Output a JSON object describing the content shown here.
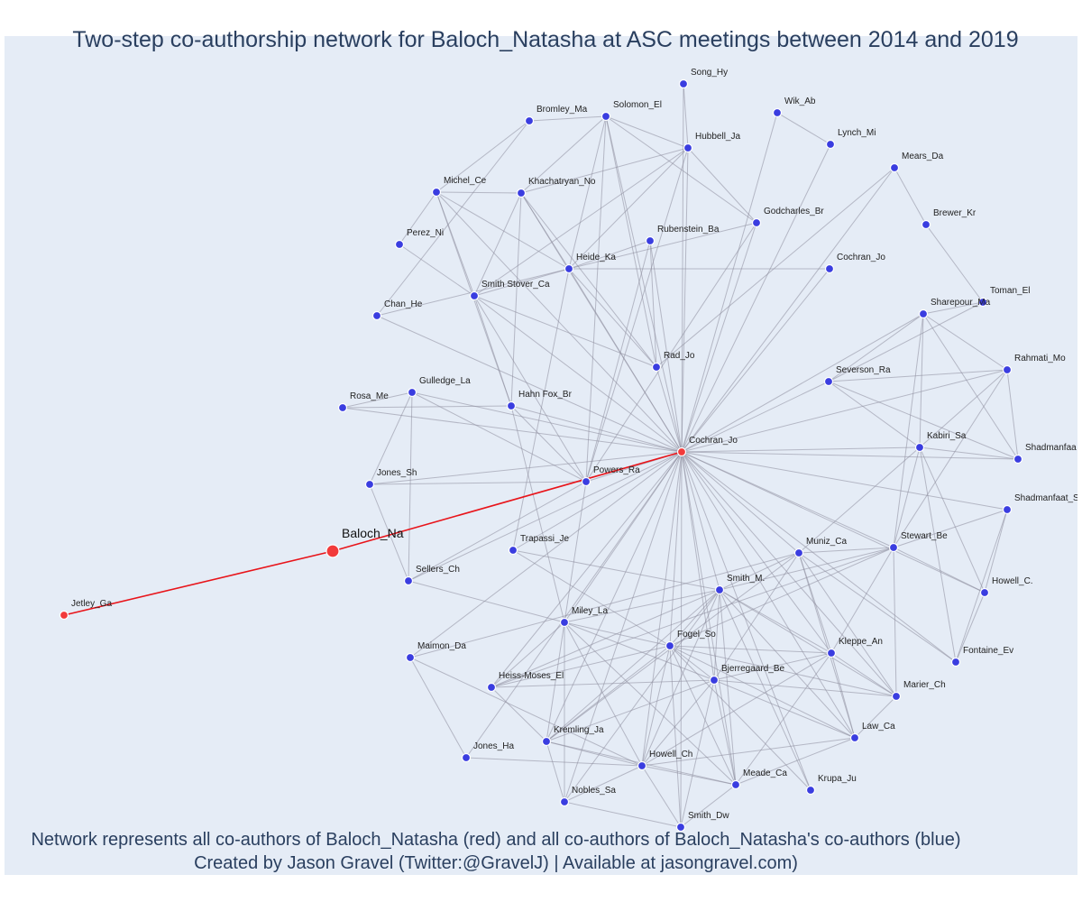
{
  "title": "Two-step co-authorship network for Baloch_Natasha at ASC meetings between 2014 and 2019",
  "footer": {
    "line1": "Network represents all co-authors of Baloch_Natasha (red) and all co-authors of Baloch_Natasha's co-authors (blue)",
    "line2": "Created by Jason Gravel (Twitter:@GravelJ) | Available at jasongravel.com)"
  },
  "colors": {
    "background": "#e5ecf6",
    "ego_and_direct_coauthors": "#f23a3a",
    "second_step_coauthors": "#3a3de0",
    "ego_edges": "#e8141a",
    "other_edges": "#8c8c9c"
  },
  "focal_node": "Baloch_Na",
  "nodes": [
    {
      "id": "Baloch_Na",
      "group": "red",
      "focal": true
    },
    {
      "id": "Jetley_Ga",
      "group": "red"
    },
    {
      "id": "Cochran_Jo",
      "group": "red"
    },
    {
      "id": "Song_Hy",
      "group": "blue"
    },
    {
      "id": "Wik_Ab",
      "group": "blue"
    },
    {
      "id": "Bromley_Ma",
      "group": "blue"
    },
    {
      "id": "Solomon_El",
      "group": "blue"
    },
    {
      "id": "Lynch_Mi",
      "group": "blue"
    },
    {
      "id": "Hubbell_Ja",
      "group": "blue"
    },
    {
      "id": "Mears_Da",
      "group": "blue"
    },
    {
      "id": "Michel_Ce",
      "group": "blue"
    },
    {
      "id": "Khachatryan_No",
      "group": "blue"
    },
    {
      "id": "Godcharles_Br",
      "group": "blue"
    },
    {
      "id": "Brewer_Kr",
      "group": "blue"
    },
    {
      "id": "Perez_Ni",
      "group": "blue"
    },
    {
      "id": "Rubenstein_Ba",
      "group": "blue"
    },
    {
      "id": "Heide_Ka",
      "group": "blue"
    },
    {
      "id": "Cochran_Jo_2",
      "label": "Cochran_Jo",
      "group": "blue"
    },
    {
      "id": "Smith Stover_Ca",
      "group": "blue"
    },
    {
      "id": "Toman_El",
      "group": "blue"
    },
    {
      "id": "Chan_He",
      "group": "blue"
    },
    {
      "id": "Sharepour_Ma",
      "group": "blue"
    },
    {
      "id": "Rad_Jo",
      "group": "blue"
    },
    {
      "id": "Rahmati_Mo",
      "group": "blue"
    },
    {
      "id": "Severson_Ra",
      "group": "blue"
    },
    {
      "id": "Gulledge_La",
      "group": "blue"
    },
    {
      "id": "Rosa_Me",
      "group": "blue"
    },
    {
      "id": "Hahn Fox_Br",
      "group": "blue"
    },
    {
      "id": "Kabiri_Sa",
      "group": "blue"
    },
    {
      "id": "Shadmanfaa",
      "group": "blue"
    },
    {
      "id": "Jones_Sh",
      "group": "blue"
    },
    {
      "id": "Powers_Ra",
      "group": "blue"
    },
    {
      "id": "Shadmanfaat_S",
      "group": "blue"
    },
    {
      "id": "Trapassi_Je",
      "group": "blue"
    },
    {
      "id": "Stewart_Be",
      "group": "blue"
    },
    {
      "id": "Muniz_Ca",
      "group": "blue"
    },
    {
      "id": "Sellers_Ch",
      "group": "blue"
    },
    {
      "id": "Smith_M.",
      "group": "blue"
    },
    {
      "id": "Howell_C.",
      "group": "blue"
    },
    {
      "id": "Miley_La",
      "group": "blue"
    },
    {
      "id": "Fogel_So",
      "group": "blue"
    },
    {
      "id": "Kleppe_An",
      "group": "blue"
    },
    {
      "id": "Maimon_Da",
      "group": "blue"
    },
    {
      "id": "Fontaine_Ev",
      "group": "blue"
    },
    {
      "id": "Bjerregaard_Be",
      "group": "blue"
    },
    {
      "id": "Heiss-Moses_El",
      "group": "blue"
    },
    {
      "id": "Marier_Ch",
      "group": "blue"
    },
    {
      "id": "Law_Ca",
      "group": "blue"
    },
    {
      "id": "Kremling_Ja",
      "group": "blue"
    },
    {
      "id": "Jones_Ha",
      "group": "blue"
    },
    {
      "id": "Howell_Ch",
      "group": "blue"
    },
    {
      "id": "Meade_Ca",
      "group": "blue"
    },
    {
      "id": "Krupa_Ju",
      "group": "blue"
    },
    {
      "id": "Nobles_Sa",
      "group": "blue"
    },
    {
      "id": "Smith_Dw",
      "group": "blue"
    }
  ],
  "edges": [
    [
      "Baloch_Na",
      "Jetley_Ga"
    ],
    [
      "Baloch_Na",
      "Cochran_Jo"
    ],
    [
      "Cochran_Jo",
      "Song_Hy"
    ],
    [
      "Cochran_Jo",
      "Wik_Ab"
    ],
    [
      "Cochran_Jo",
      "Solomon_El"
    ],
    [
      "Cochran_Jo",
      "Lynch_Mi"
    ],
    [
      "Cochran_Jo",
      "Hubbell_Ja"
    ],
    [
      "Cochran_Jo",
      "Mears_Da"
    ],
    [
      "Cochran_Jo",
      "Michel_Ce"
    ],
    [
      "Cochran_Jo",
      "Khachatryan_No"
    ],
    [
      "Cochran_Jo",
      "Godcharles_Br"
    ],
    [
      "Cochran_Jo",
      "Rubenstein_Ba"
    ],
    [
      "Cochran_Jo",
      "Heide_Ka"
    ],
    [
      "Cochran_Jo",
      "Cochran_Jo_2"
    ],
    [
      "Cochran_Jo",
      "Smith Stover_Ca"
    ],
    [
      "Cochran_Jo",
      "Chan_He"
    ],
    [
      "Cochran_Jo",
      "Sharepour_Ma"
    ],
    [
      "Cochran_Jo",
      "Rad_Jo"
    ],
    [
      "Cochran_Jo",
      "Rahmati_Mo"
    ],
    [
      "Cochran_Jo",
      "Severson_Ra"
    ],
    [
      "Cochran_Jo",
      "Gulledge_La"
    ],
    [
      "Cochran_Jo",
      "Rosa_Me"
    ],
    [
      "Cochran_Jo",
      "Hahn Fox_Br"
    ],
    [
      "Cochran_Jo",
      "Kabiri_Sa"
    ],
    [
      "Cochran_Jo",
      "Shadmanfaa"
    ],
    [
      "Cochran_Jo",
      "Jones_Sh"
    ],
    [
      "Cochran_Jo",
      "Powers_Ra"
    ],
    [
      "Cochran_Jo",
      "Shadmanfaat_S"
    ],
    [
      "Cochran_Jo",
      "Trapassi_Je"
    ],
    [
      "Cochran_Jo",
      "Stewart_Be"
    ],
    [
      "Cochran_Jo",
      "Muniz_Ca"
    ],
    [
      "Cochran_Jo",
      "Sellers_Ch"
    ],
    [
      "Cochran_Jo",
      "Smith_M."
    ],
    [
      "Cochran_Jo",
      "Howell_C."
    ],
    [
      "Cochran_Jo",
      "Miley_La"
    ],
    [
      "Cochran_Jo",
      "Fogel_So"
    ],
    [
      "Cochran_Jo",
      "Kleppe_An"
    ],
    [
      "Cochran_Jo",
      "Maimon_Da"
    ],
    [
      "Cochran_Jo",
      "Fontaine_Ev"
    ],
    [
      "Cochran_Jo",
      "Bjerregaard_Be"
    ],
    [
      "Cochran_Jo",
      "Heiss-Moses_El"
    ],
    [
      "Cochran_Jo",
      "Marier_Ch"
    ],
    [
      "Cochran_Jo",
      "Law_Ca"
    ],
    [
      "Cochran_Jo",
      "Kremling_Ja"
    ],
    [
      "Cochran_Jo",
      "Jones_Ha"
    ],
    [
      "Cochran_Jo",
      "Howell_Ch"
    ],
    [
      "Cochran_Jo",
      "Meade_Ca"
    ],
    [
      "Cochran_Jo",
      "Krupa_Ju"
    ],
    [
      "Cochran_Jo",
      "Nobles_Sa"
    ],
    [
      "Cochran_Jo",
      "Smith_Dw"
    ],
    [
      "Song_Hy",
      "Hubbell_Ja"
    ],
    [
      "Wik_Ab",
      "Lynch_Mi"
    ],
    [
      "Bromley_Ma",
      "Solomon_El"
    ],
    [
      "Bromley_Ma",
      "Michel_Ce"
    ],
    [
      "Bromley_Ma",
      "Chan_He"
    ],
    [
      "Solomon_El",
      "Hubbell_Ja"
    ],
    [
      "Solomon_El",
      "Khachatryan_No"
    ],
    [
      "Solomon_El",
      "Heide_Ka"
    ],
    [
      "Solomon_El",
      "Godcharles_Br"
    ],
    [
      "Solomon_El",
      "Rad_Jo"
    ],
    [
      "Solomon_El",
      "Powers_Ra"
    ],
    [
      "Hubbell_Ja",
      "Khachatryan_No"
    ],
    [
      "Hubbell_Ja",
      "Godcharles_Br"
    ],
    [
      "Hubbell_Ja",
      "Heide_Ka"
    ],
    [
      "Hubbell_Ja",
      "Smith Stover_Ca"
    ],
    [
      "Hubbell_Ja",
      "Powers_Ra"
    ],
    [
      "Mears_Da",
      "Brewer_Kr"
    ],
    [
      "Mears_Da",
      "Rad_Jo"
    ],
    [
      "Brewer_Kr",
      "Toman_El"
    ],
    [
      "Michel_Ce",
      "Khachatryan_No"
    ],
    [
      "Michel_Ce",
      "Perez_Ni"
    ],
    [
      "Michel_Ce",
      "Heide_Ka"
    ],
    [
      "Michel_Ce",
      "Smith Stover_Ca"
    ],
    [
      "Michel_Ce",
      "Hahn Fox_Br"
    ],
    [
      "Khachatryan_No",
      "Heide_Ka"
    ],
    [
      "Khachatryan_No",
      "Smith Stover_Ca"
    ],
    [
      "Khachatryan_No",
      "Rad_Jo"
    ],
    [
      "Khachatryan_No",
      "Hahn Fox_Br"
    ],
    [
      "Perez_Ni",
      "Smith Stover_Ca"
    ],
    [
      "Heide_Ka",
      "Rubenstein_Ba"
    ],
    [
      "Heide_Ka",
      "Smith Stover_Ca"
    ],
    [
      "Heide_Ka",
      "Godcharles_Br"
    ],
    [
      "Heide_Ka",
      "Cochran_Jo_2"
    ],
    [
      "Heide_Ka",
      "Rad_Jo"
    ],
    [
      "Heide_Ka",
      "Chan_He"
    ],
    [
      "Heide_Ka",
      "Trapassi_Je"
    ],
    [
      "Rubenstein_Ba",
      "Rad_Jo"
    ],
    [
      "Rubenstein_Ba",
      "Powers_Ra"
    ],
    [
      "Godcharles_Br",
      "Powers_Ra"
    ],
    [
      "Smith Stover_Ca",
      "Rad_Jo"
    ],
    [
      "Smith Stover_Ca",
      "Hahn Fox_Br"
    ],
    [
      "Smith Stover_Ca",
      "Powers_Ra"
    ],
    [
      "Toman_El",
      "Sharepour_Ma"
    ],
    [
      "Toman_El",
      "Severson_Ra"
    ],
    [
      "Sharepour_Ma",
      "Rahmati_Mo"
    ],
    [
      "Sharepour_Ma",
      "Kabiri_Sa"
    ],
    [
      "Sharepour_Ma",
      "Shadmanfaa"
    ],
    [
      "Sharepour_Ma",
      "Stewart_Be"
    ],
    [
      "Sharepour_Ma",
      "Severson_Ra"
    ],
    [
      "Rahmati_Mo",
      "Severson_Ra"
    ],
    [
      "Rahmati_Mo",
      "Kabiri_Sa"
    ],
    [
      "Rahmati_Mo",
      "Shadmanfaa"
    ],
    [
      "Rahmati_Mo",
      "Stewart_Be"
    ],
    [
      "Severson_Ra",
      "Kabiri_Sa"
    ],
    [
      "Severson_Ra",
      "Shadmanfaa"
    ],
    [
      "Kabiri_Sa",
      "Shadmanfaa"
    ],
    [
      "Kabiri_Sa",
      "Stewart_Be"
    ],
    [
      "Kabiri_Sa",
      "Howell_C."
    ],
    [
      "Kabiri_Sa",
      "Fontaine_Ev"
    ],
    [
      "Kabiri_Sa",
      "Muniz_Ca"
    ],
    [
      "Shadmanfaat_S",
      "Stewart_Be"
    ],
    [
      "Shadmanfaat_S",
      "Howell_C."
    ],
    [
      "Shadmanfaat_S",
      "Fontaine_Ev"
    ],
    [
      "Howell_C.",
      "Fontaine_Ev"
    ],
    [
      "Howell_C.",
      "Stewart_Be"
    ],
    [
      "Gulledge_La",
      "Rosa_Me"
    ],
    [
      "Gulledge_La",
      "Jones_Sh"
    ],
    [
      "Gulledge_La",
      "Sellers_Ch"
    ],
    [
      "Gulledge_La",
      "Powers_Ra"
    ],
    [
      "Rosa_Me",
      "Hahn Fox_Br"
    ],
    [
      "Jones_Sh",
      "Sellers_Ch"
    ],
    [
      "Jones_Sh",
      "Powers_Ra"
    ],
    [
      "Hahn Fox_Br",
      "Powers_Ra"
    ],
    [
      "Hahn Fox_Br",
      "Miley_La"
    ],
    [
      "Powers_Ra",
      "Sellers_Ch"
    ],
    [
      "Powers_Ra",
      "Miley_La"
    ],
    [
      "Trapassi_Je",
      "Smith_M."
    ],
    [
      "Trapassi_Je",
      "Fogel_So"
    ],
    [
      "Sellers_Ch",
      "Miley_La"
    ],
    [
      "Miley_La",
      "Smith_M."
    ],
    [
      "Miley_La",
      "Fogel_So"
    ],
    [
      "Miley_La",
      "Bjerregaard_Be"
    ],
    [
      "Miley_La",
      "Heiss-Moses_El"
    ],
    [
      "Miley_La",
      "Kremling_Ja"
    ],
    [
      "Miley_La",
      "Howell_Ch"
    ],
    [
      "Miley_La",
      "Nobles_Sa"
    ],
    [
      "Miley_La",
      "Meade_Ca"
    ],
    [
      "Maimon_Da",
      "Howell_Ch"
    ],
    [
      "Maimon_Da",
      "Jones_Ha"
    ],
    [
      "Maimon_Da",
      "Muniz_Ca"
    ],
    [
      "Smith_M.",
      "Fogel_So"
    ],
    [
      "Smith_M.",
      "Bjerregaard_Be"
    ],
    [
      "Smith_M.",
      "Kleppe_An"
    ],
    [
      "Smith_M.",
      "Muniz_Ca"
    ],
    [
      "Smith_M.",
      "Stewart_Be"
    ],
    [
      "Smith_M.",
      "Heiss-Moses_El"
    ],
    [
      "Smith_M.",
      "Kremling_Ja"
    ],
    [
      "Smith_M.",
      "Howell_Ch"
    ],
    [
      "Smith_M.",
      "Meade_Ca"
    ],
    [
      "Smith_M.",
      "Law_Ca"
    ],
    [
      "Smith_M.",
      "Marier_Ch"
    ],
    [
      "Smith_M.",
      "Krupa_Ju"
    ],
    [
      "Fogel_So",
      "Bjerregaard_Be"
    ],
    [
      "Fogel_So",
      "Kleppe_An"
    ],
    [
      "Fogel_So",
      "Heiss-Moses_El"
    ],
    [
      "Fogel_So",
      "Kremling_Ja"
    ],
    [
      "Fogel_So",
      "Howell_Ch"
    ],
    [
      "Fogel_So",
      "Meade_Ca"
    ],
    [
      "Fogel_So",
      "Krupa_Ju"
    ],
    [
      "Fogel_So",
      "Smith_Dw"
    ],
    [
      "Fogel_So",
      "Marier_Ch"
    ],
    [
      "Fogel_So",
      "Law_Ca"
    ],
    [
      "Fogel_So",
      "Stewart_Be"
    ],
    [
      "Bjerregaard_Be",
      "Kleppe_An"
    ],
    [
      "Bjerregaard_Be",
      "Heiss-Moses_El"
    ],
    [
      "Bjerregaard_Be",
      "Kremling_Ja"
    ],
    [
      "Bjerregaard_Be",
      "Howell_Ch"
    ],
    [
      "Bjerregaard_Be",
      "Meade_Ca"
    ],
    [
      "Bjerregaard_Be",
      "Marier_Ch"
    ],
    [
      "Bjerregaard_Be",
      "Law_Ca"
    ],
    [
      "Bjerregaard_Be",
      "Smith_Dw"
    ],
    [
      "Bjerregaard_Be",
      "Muniz_Ca"
    ],
    [
      "Kleppe_An",
      "Muniz_Ca"
    ],
    [
      "Kleppe_An",
      "Law_Ca"
    ],
    [
      "Kleppe_An",
      "Howell_Ch"
    ],
    [
      "Kleppe_An",
      "Meade_Ca"
    ],
    [
      "Kleppe_An",
      "Marier_Ch"
    ],
    [
      "Muniz_Ca",
      "Stewart_Be"
    ],
    [
      "Muniz_Ca",
      "Law_Ca"
    ],
    [
      "Muniz_Ca",
      "Marier_Ch"
    ],
    [
      "Muniz_Ca",
      "Kremling_Ja"
    ],
    [
      "Muniz_Ca",
      "Fontaine_Ev"
    ],
    [
      "Stewart_Be",
      "Marier_Ch"
    ],
    [
      "Stewart_Be",
      "Kleppe_An"
    ],
    [
      "Marier_Ch",
      "Law_Ca"
    ],
    [
      "Law_Ca",
      "Meade_Ca"
    ],
    [
      "Law_Ca",
      "Howell_Ch"
    ],
    [
      "Kremling_Ja",
      "Howell_Ch"
    ],
    [
      "Kremling_Ja",
      "Meade_Ca"
    ],
    [
      "Kremling_Ja",
      "Nobles_Sa"
    ],
    [
      "Jones_Ha",
      "Howell_Ch"
    ],
    [
      "Howell_Ch",
      "Meade_Ca"
    ],
    [
      "Howell_Ch",
      "Nobles_Sa"
    ],
    [
      "Howell_Ch",
      "Smith_Dw"
    ],
    [
      "Meade_Ca",
      "Smith_Dw"
    ],
    [
      "Nobles_Sa",
      "Smith_Dw"
    ],
    [
      "Heiss-Moses_El",
      "Kremling_Ja"
    ],
    [
      "Heiss-Moses_El",
      "Stewart_Be"
    ],
    [
      "Nobles_Sa",
      "Smith_M."
    ]
  ]
}
